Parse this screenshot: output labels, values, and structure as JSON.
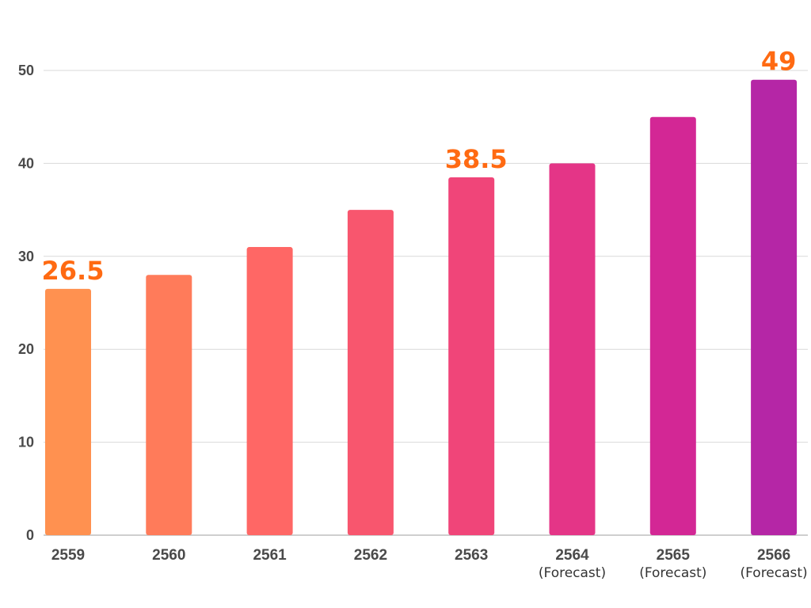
{
  "chart_data": {
    "type": "bar",
    "title": "",
    "xlabel": "",
    "ylabel": "",
    "ylim": [
      0,
      50
    ],
    "yticks": [
      0,
      10,
      20,
      30,
      40,
      50
    ],
    "grid": true,
    "categories": [
      {
        "label": "2559",
        "sub": ""
      },
      {
        "label": "2560",
        "sub": ""
      },
      {
        "label": "2561",
        "sub": ""
      },
      {
        "label": "2562",
        "sub": ""
      },
      {
        "label": "2563",
        "sub": ""
      },
      {
        "label": "2564",
        "sub": "(Forecast)"
      },
      {
        "label": "2565",
        "sub": "(Forecast)"
      },
      {
        "label": "2566",
        "sub": "(Forecast)"
      }
    ],
    "values": [
      26.5,
      28,
      31,
      35,
      38.5,
      40,
      45,
      49
    ],
    "bar_colors": [
      "#ff9150",
      "#ff7b5a",
      "#ff6765",
      "#f8566e",
      "#f04579",
      "#e43587",
      "#d32795",
      "#b526a6"
    ],
    "data_labels": [
      {
        "index": 0,
        "text": "26.5"
      },
      {
        "index": 4,
        "text": "38.5"
      },
      {
        "index": 7,
        "text": "49"
      }
    ],
    "data_label_color": "#ff6a12",
    "grid_color": "#d9d9d9",
    "axis_color": "#bfbfbf"
  }
}
